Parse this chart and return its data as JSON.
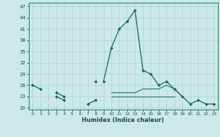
{
  "xlabel": "Humidex (Indice chaleur)",
  "x": [
    0,
    1,
    2,
    3,
    4,
    5,
    6,
    7,
    8,
    9,
    10,
    11,
    12,
    13,
    14,
    15,
    16,
    17,
    18,
    19,
    20,
    21,
    22,
    23
  ],
  "main_line": [
    26,
    25,
    null,
    null,
    null,
    null,
    null,
    null,
    null,
    27,
    36,
    41,
    43,
    46,
    30,
    29,
    26,
    27,
    25,
    23,
    21,
    22,
    21,
    21
  ],
  "second_line": [
    null,
    null,
    null,
    24,
    23,
    null,
    null,
    null,
    27,
    null,
    null,
    null,
    null,
    null,
    null,
    null,
    null,
    null,
    null,
    null,
    null,
    null,
    null,
    null
  ],
  "flat_high": [
    null,
    null,
    null,
    null,
    23,
    null,
    null,
    null,
    null,
    null,
    24,
    24,
    24,
    24,
    25,
    25,
    25,
    26,
    25,
    23,
    null,
    null,
    null,
    null
  ],
  "flat_low": [
    null,
    null,
    null,
    null,
    23,
    null,
    null,
    null,
    null,
    null,
    23,
    23,
    23,
    23,
    23,
    23,
    23,
    23,
    23,
    null,
    null,
    null,
    null,
    null
  ],
  "short_seg": [
    null,
    null,
    null,
    23,
    22,
    null,
    null,
    21,
    22,
    null,
    null,
    null,
    null,
    null,
    null,
    null,
    null,
    null,
    null,
    null,
    null,
    null,
    null,
    null
  ],
  "bg_color": "#cce8e8",
  "grid_color": "#b0d0d0",
  "line_color": "#1a6e60",
  "ylim_min": 19.5,
  "ylim_max": 48,
  "yticks": [
    20,
    23,
    26,
    29,
    32,
    35,
    38,
    41,
    44,
    47
  ],
  "xlim_min": -0.5,
  "xlim_max": 23.5
}
